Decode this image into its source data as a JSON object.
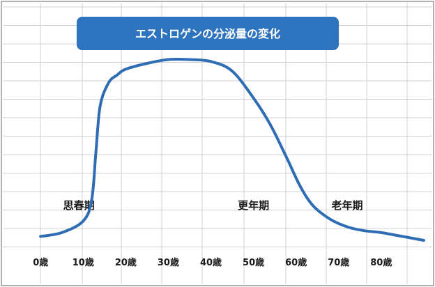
{
  "chart_data": {
    "type": "line",
    "title": "エストロゲンの分泌量の変化",
    "xlabel": "",
    "ylabel": "",
    "grid": true,
    "legend": "none",
    "xlim": [
      -2,
      91
    ],
    "ylim": [
      0,
      100
    ],
    "x_ticks": [
      {
        "value": 0,
        "label": "0歳"
      },
      {
        "value": 10,
        "label": "10歳"
      },
      {
        "value": 20,
        "label": "20歳"
      },
      {
        "value": 30,
        "label": "30歳"
      },
      {
        "value": 40,
        "label": "40歳"
      },
      {
        "value": 50,
        "label": "50歳"
      },
      {
        "value": 60,
        "label": "60歳"
      },
      {
        "value": 70,
        "label": "70歳"
      },
      {
        "value": 80,
        "label": "80歳"
      }
    ],
    "annotations": [
      {
        "text": "思春期",
        "x": 9
      },
      {
        "text": "更年期",
        "x": 50
      },
      {
        "text": "老年期",
        "x": 72
      }
    ],
    "series": [
      {
        "color": "#2e6db4",
        "x": [
          0,
          5,
          10,
          12,
          13,
          14,
          16,
          18,
          20,
          25,
          30,
          35,
          40,
          45,
          50,
          54,
          58,
          61,
          64,
          68,
          72,
          76,
          80,
          85,
          90
        ],
        "y": [
          6,
          8,
          14,
          25,
          50,
          74,
          86,
          90,
          93,
          96,
          98,
          98,
          97,
          92,
          78,
          64,
          46,
          32,
          22,
          15,
          11,
          9,
          8,
          6,
          4
        ]
      }
    ],
    "colors": {
      "title_box": "#2e73bd",
      "grid": "#d0d0d0",
      "line": "#2e6db4",
      "frame": "#999999"
    }
  }
}
